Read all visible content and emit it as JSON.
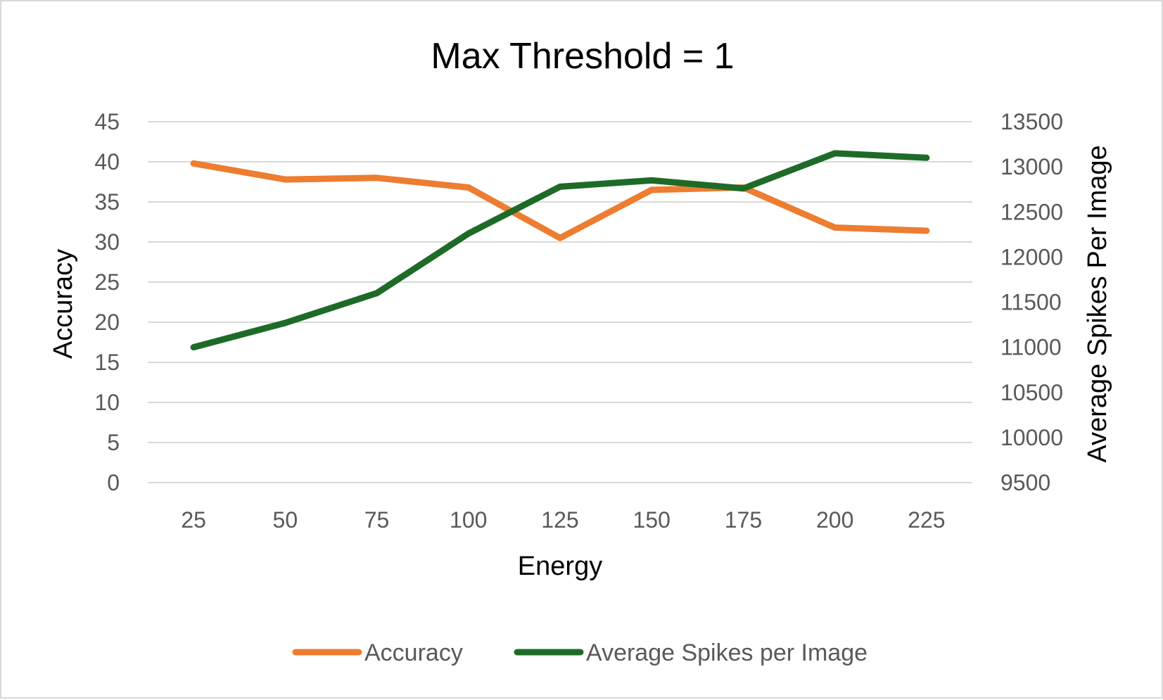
{
  "chart_data": {
    "type": "line",
    "title": "Max Threshold = 1",
    "xlabel": "Energy",
    "ylabel": "Accuracy",
    "y2label": "Average Spikes Per Image",
    "categories": [
      "25",
      "50",
      "75",
      "100",
      "125",
      "150",
      "175",
      "200",
      "225"
    ],
    "x_values": [
      25,
      50,
      75,
      100,
      125,
      150,
      175,
      200,
      225
    ],
    "ylim": [
      0,
      45
    ],
    "y_ticks": [
      "0",
      "5",
      "10",
      "15",
      "20",
      "25",
      "30",
      "35",
      "40",
      "45"
    ],
    "y2lim": [
      9500,
      13500
    ],
    "y2_ticks": [
      "9500",
      "10000",
      "10500",
      "11000",
      "11500",
      "12000",
      "12500",
      "13000",
      "13500"
    ],
    "grid": true,
    "legend_position": "bottom",
    "series": [
      {
        "name": "Accuracy",
        "axis": "left",
        "color": "#ed7d31",
        "values": [
          39.8,
          37.8,
          38.0,
          36.8,
          30.5,
          36.5,
          36.8,
          31.8,
          31.4
        ]
      },
      {
        "name": "Average Spikes per Image",
        "axis": "right",
        "color": "#1e6b27",
        "values": [
          11000,
          11270,
          11600,
          12260,
          12780,
          12850,
          12760,
          13150,
          13100
        ]
      }
    ]
  }
}
